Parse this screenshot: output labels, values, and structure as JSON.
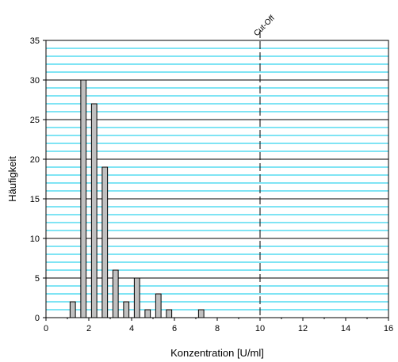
{
  "chart_data": {
    "type": "bar",
    "title": "",
    "xlabel": "Konzentration [U/ml]",
    "ylabel": "Häufigkeit",
    "xlim": [
      0,
      16
    ],
    "ylim": [
      0,
      35
    ],
    "xticks": [
      0,
      2,
      4,
      6,
      8,
      10,
      12,
      14,
      16
    ],
    "yticks": [
      0,
      5,
      10,
      15,
      20,
      25,
      30,
      35
    ],
    "x_tick_labels": [
      "0",
      "2",
      "4",
      "6",
      "8",
      "10",
      "12",
      "14",
      "16"
    ],
    "y_tick_labels": [
      "0",
      "5",
      "10",
      "15",
      "20",
      "25",
      "30",
      "35"
    ],
    "x": [
      1.25,
      1.75,
      2.25,
      2.75,
      3.25,
      3.75,
      4.25,
      4.75,
      5.25,
      5.75,
      7.25
    ],
    "values": [
      2,
      30,
      27,
      19,
      6,
      2,
      5,
      1,
      3,
      1,
      1
    ],
    "bar_color": "#c0c0c0",
    "major_grid_color": "#000000",
    "minor_grid_color": "#00c8e8",
    "grid": true,
    "legend": false,
    "cutoff": {
      "x": 10,
      "label": "Cut-Off"
    }
  }
}
